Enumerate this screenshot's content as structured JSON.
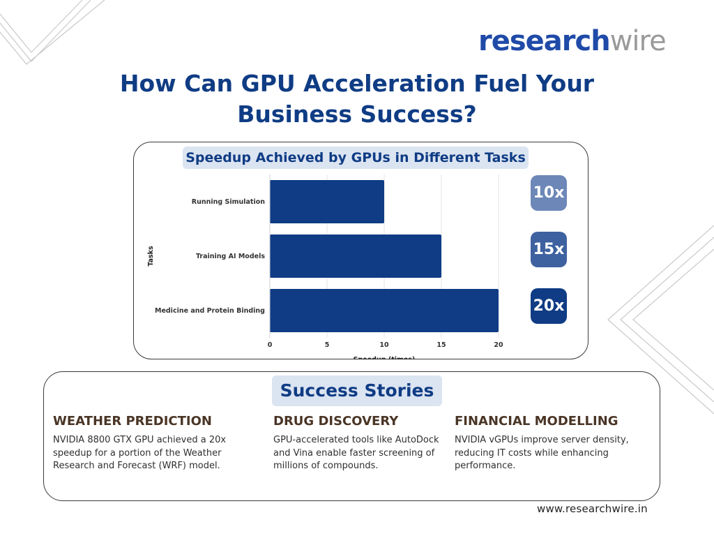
{
  "logo": {
    "part1": "research",
    "part2": "wire"
  },
  "title": {
    "line1": "How Can GPU Acceleration Fuel Your",
    "line2": "Business Success?"
  },
  "chart_data": {
    "type": "bar",
    "orientation": "horizontal",
    "title": "Speedup Achieved by GPUs in Different Tasks",
    "categories": [
      "Running Simulation",
      "Training AI Models",
      "Medicine and Protein Binding"
    ],
    "values": [
      10,
      15,
      20
    ],
    "xlabel": "Speedup (times)",
    "ylabel": "Tasks",
    "xlim": [
      0,
      20
    ],
    "xticks": [
      "0",
      "5",
      "10",
      "15",
      "20"
    ],
    "grid": "vertical",
    "bar_color": "#0f3c84",
    "grid_color": "#e3e3e3"
  },
  "badges": [
    {
      "label": "10x",
      "color": "#6d87b8"
    },
    {
      "label": "15x",
      "color": "#3e62a0"
    },
    {
      "label": "20x",
      "color": "#0f3c84"
    }
  ],
  "stories": {
    "heading": "Success Stories",
    "items": [
      {
        "title": "WEATHER PREDICTION",
        "text": "NVIDIA 8800 GTX GPU achieved a 20x speedup for a portion of the Weather Research and Forecast (WRF) model."
      },
      {
        "title": "DRUG DISCOVERY",
        "text": "GPU-accelerated tools like AutoDock and Vina enable faster screening of millions of compounds."
      },
      {
        "title": "FINANCIAL MODELLING",
        "text": "NVIDIA vGPUs improve server density, reducing IT costs while enhancing performance."
      }
    ]
  },
  "footer": {
    "url": "www.researchwire.in"
  },
  "colors": {
    "brand_blue": "#1f4aa8",
    "navy": "#0f3c84",
    "pill_bg": "#dbe4f1",
    "story_title": "#4a3526"
  }
}
